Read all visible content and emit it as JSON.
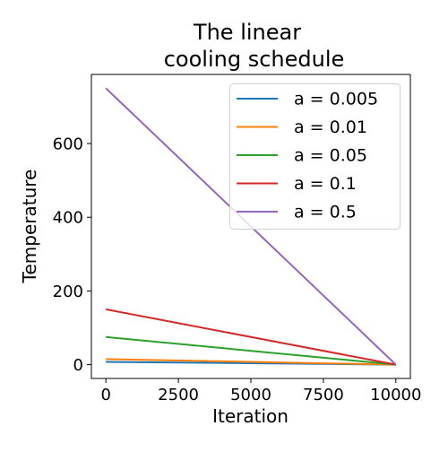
{
  "chart_data": {
    "type": "line",
    "title_lines": [
      "The linear",
      "cooling schedule"
    ],
    "xlabel": "Iteration",
    "ylabel": "Temperature",
    "x": [
      0,
      10000
    ],
    "xlim": [
      -500,
      10500
    ],
    "ylim": [
      -37.5,
      787.5
    ],
    "xticks": [
      0,
      2500,
      5000,
      7500,
      10000
    ],
    "xtick_labels": [
      "0",
      "2500",
      "5000",
      "7500",
      "10000"
    ],
    "yticks": [
      0,
      200,
      400,
      600
    ],
    "ytick_labels": [
      "0",
      "200",
      "400",
      "600"
    ],
    "grid": false,
    "legend_position": "top-right",
    "series": [
      {
        "name": "a = 0.005",
        "color": "#1f77b4",
        "values": [
          7.5,
          0
        ]
      },
      {
        "name": "a = 0.01",
        "color": "#ff7f0e",
        "values": [
          15,
          0
        ]
      },
      {
        "name": "a = 0.05",
        "color": "#2ca02c",
        "values": [
          75,
          0
        ]
      },
      {
        "name": "a = 0.1",
        "color": "#d62728",
        "values": [
          150,
          0
        ]
      },
      {
        "name": "a = 0.5",
        "color": "#9467bd",
        "values": [
          750,
          0
        ]
      }
    ]
  }
}
